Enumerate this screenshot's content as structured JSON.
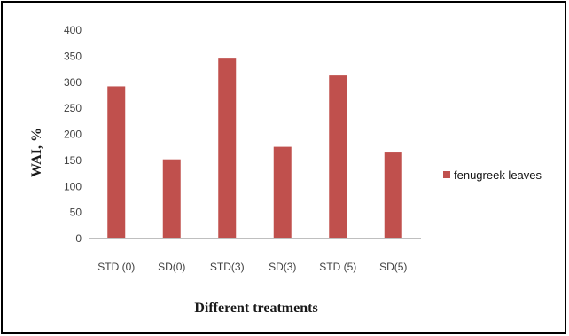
{
  "chart_data": {
    "type": "bar",
    "categories": [
      "STD (0)",
      "SD(0)",
      "STD(3)",
      "SD(3)",
      "STD (5)",
      "SD(5)"
    ],
    "series": [
      {
        "name": "fenugreek leaves",
        "values": [
          292,
          152,
          347,
          176,
          313,
          165
        ],
        "color": "#c0504d"
      }
    ],
    "xlabel": "Different treatments",
    "ylabel": "WAI, %",
    "ylim": [
      0,
      400
    ],
    "yticks": [
      "0",
      "50",
      "100",
      "150",
      "200",
      "250",
      "300",
      "350",
      "400"
    ],
    "grid": false,
    "legend_position": "right"
  }
}
